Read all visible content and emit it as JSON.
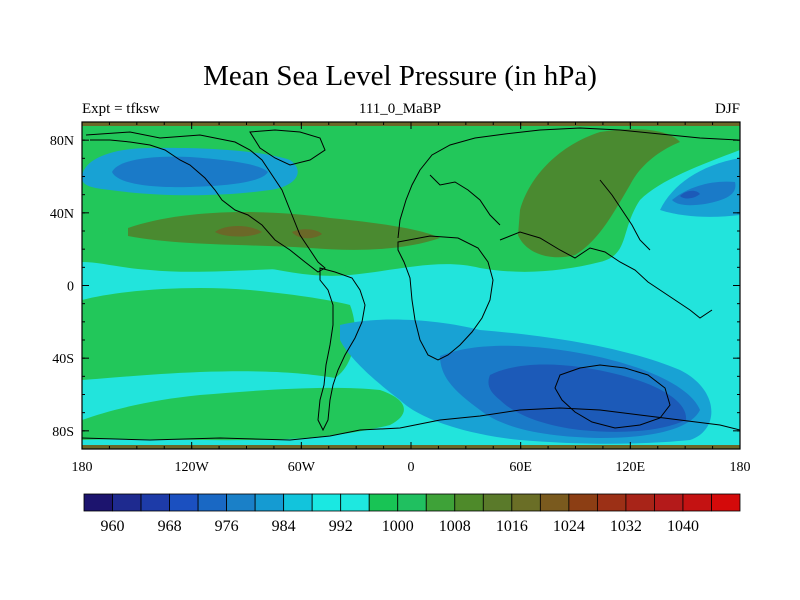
{
  "chart_data": {
    "type": "contour-map",
    "title": "Mean Sea Level Pressure (in hPa)",
    "left_label": "Expt = tfksw",
    "center_label": "111_0_MaBP",
    "right_label": "DJF",
    "x_ticks": [
      "180",
      "120W",
      "60W",
      "0",
      "60E",
      "120E",
      "180"
    ],
    "y_ticks": [
      "80N",
      "40N",
      "0",
      "40S",
      "80S"
    ],
    "lon_range": [
      -180,
      180
    ],
    "lat_range": [
      -90,
      90
    ],
    "colorbar_labels": [
      "960",
      "968",
      "976",
      "984",
      "992",
      "1000",
      "1008",
      "1016",
      "1024",
      "1032",
      "1040"
    ],
    "colorbar_colors": [
      "#1c146e",
      "#1e2a8f",
      "#1d3ba8",
      "#1b50c0",
      "#1968c4",
      "#1a80c8",
      "#159bd2",
      "#12c4dc",
      "#1ae8e2",
      "#1ee8e0",
      "#18c455",
      "#20c060",
      "#3ea238",
      "#4e8a2a",
      "#5a7a2a",
      "#6a6e26",
      "#7a5a1e",
      "#8c3e14",
      "#9c3016",
      "#a82418",
      "#b41a1a",
      "#c41212",
      "#d40a0a"
    ],
    "fields": {
      "background": "#22e4dc",
      "band_1000": "#22c75a",
      "band_1008": "#4a8a30",
      "band_1016": "#6b6828",
      "low_992": "#18a2d4",
      "low_984": "#1a7ac8",
      "low_976": "#1c5ab8"
    }
  }
}
